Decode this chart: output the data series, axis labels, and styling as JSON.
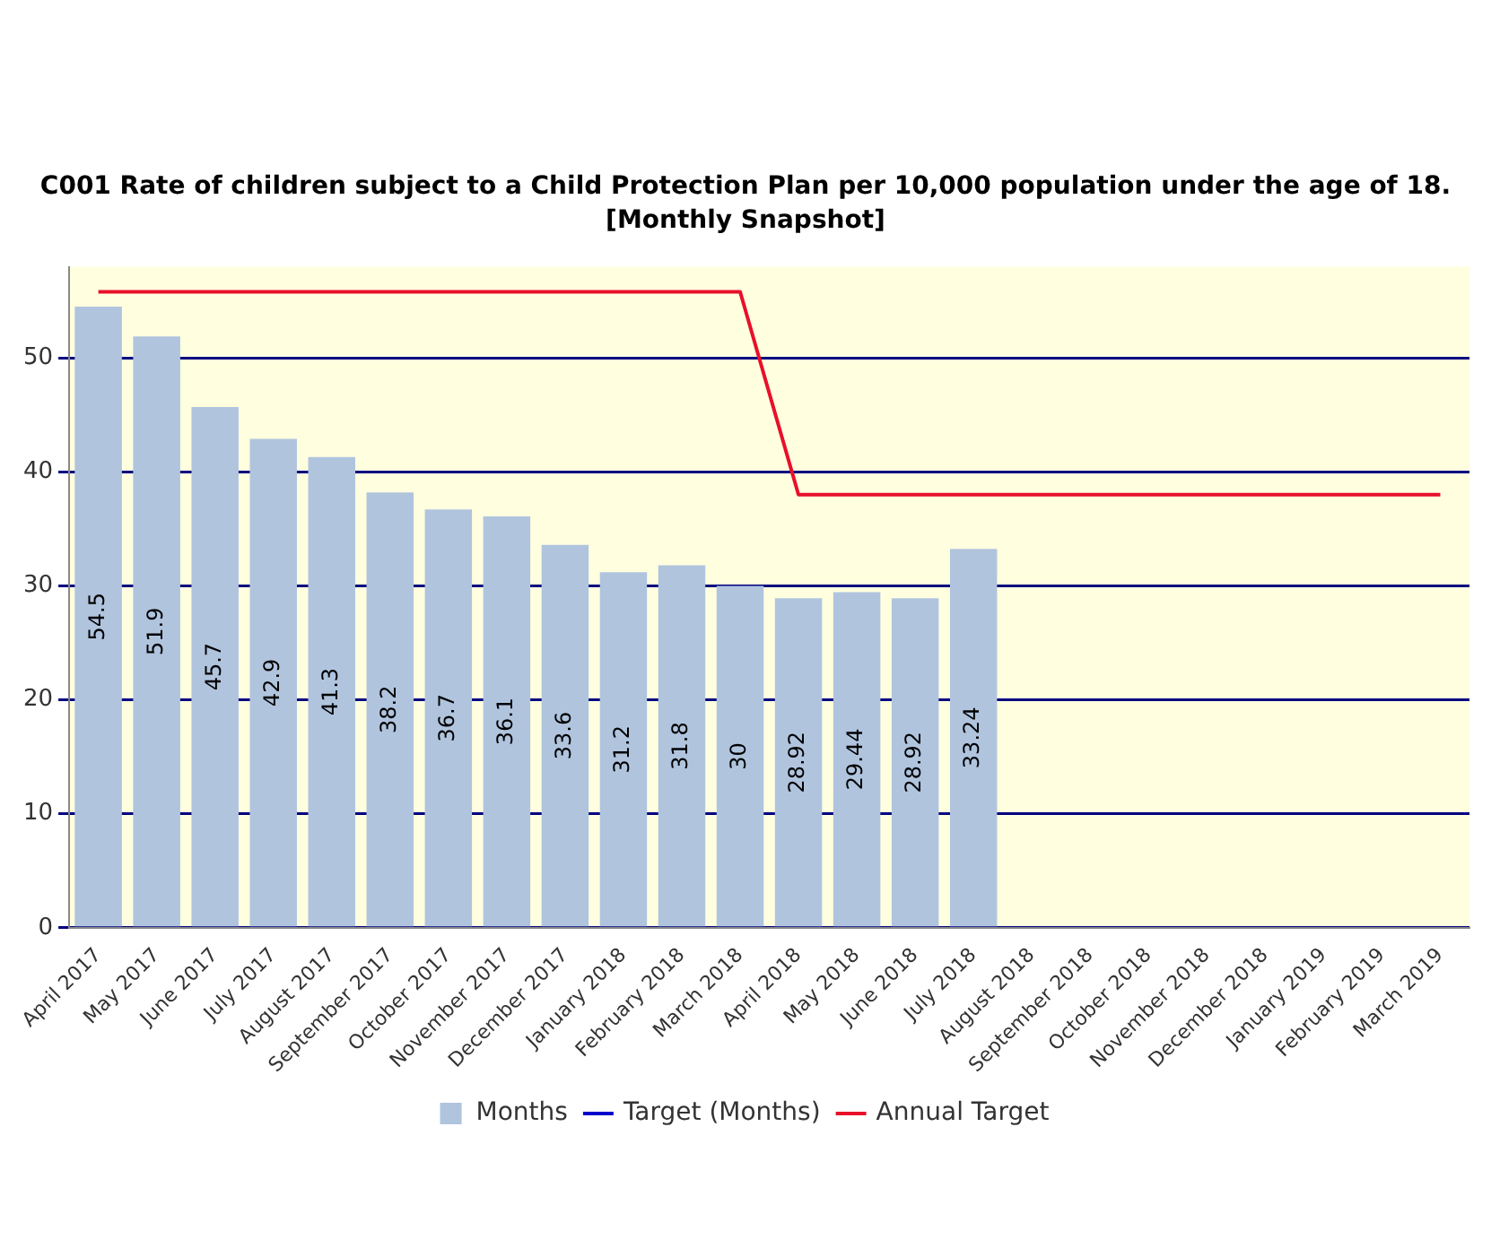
{
  "chart_data": {
    "type": "bar",
    "title": "C001 Rate of children subject to a Child Protection Plan per 10,000 population under the age of 18. [Monthly Snapshot]",
    "categories": [
      "April 2017",
      "May 2017",
      "June 2017",
      "July 2017",
      "August 2017",
      "September 2017",
      "October 2017",
      "November 2017",
      "December 2017",
      "January 2018",
      "February 2018",
      "March 2018",
      "April 2018",
      "May 2018",
      "June 2018",
      "July 2018",
      "August 2018",
      "September 2018",
      "October 2018",
      "November 2018",
      "December 2018",
      "January 2019",
      "February 2019",
      "March 2019"
    ],
    "series": [
      {
        "name": "Months",
        "color": "#b0c4de",
        "values": [
          54.5,
          51.9,
          45.7,
          42.9,
          41.3,
          38.2,
          36.7,
          36.1,
          33.6,
          31.2,
          31.8,
          30,
          28.92,
          29.44,
          28.92,
          33.24,
          null,
          null,
          null,
          null,
          null,
          null,
          null,
          null
        ],
        "value_labels": [
          "54.5",
          "51.9",
          "45.7",
          "42.9",
          "41.3",
          "38.2",
          "36.7",
          "36.1",
          "33.6",
          "31.2",
          "31.8",
          "30",
          "28.92",
          "29.44",
          "28.92",
          "33.24",
          null,
          null,
          null,
          null,
          null,
          null,
          null,
          null
        ]
      },
      {
        "name": "Target (Months)",
        "type": "line",
        "color": "#0000cc",
        "values": [
          null,
          null,
          null,
          null,
          null,
          null,
          null,
          null,
          null,
          null,
          null,
          null,
          null,
          null,
          null,
          null,
          null,
          null,
          null,
          null,
          null,
          null,
          null,
          null
        ]
      },
      {
        "name": "Annual Target",
        "type": "line",
        "color": "#e8102a",
        "values": [
          55.8,
          55.8,
          55.8,
          55.8,
          55.8,
          55.8,
          55.8,
          55.8,
          55.8,
          55.8,
          55.8,
          55.8,
          38,
          38,
          38,
          38,
          38,
          38,
          38,
          38,
          38,
          38,
          38,
          38
        ]
      }
    ],
    "ylim": [
      0,
      58
    ],
    "yticks": [
      0,
      10,
      20,
      30,
      40,
      50
    ],
    "grid": "y",
    "legend": "bottom",
    "marker": "none",
    "line_style": "solid"
  }
}
